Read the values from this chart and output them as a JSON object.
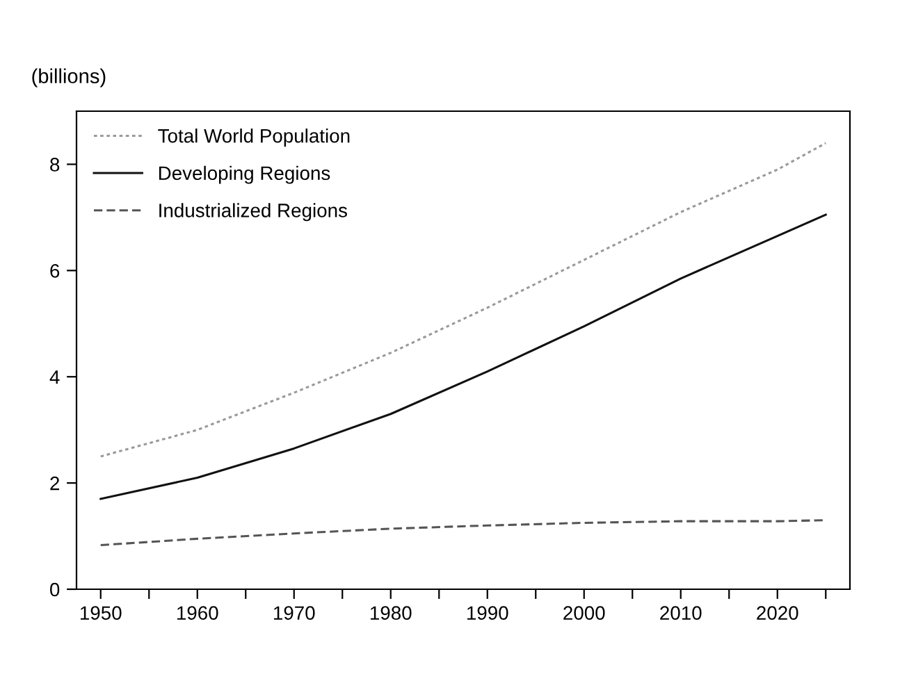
{
  "chart_data": {
    "type": "line",
    "ylabel": "(billions)",
    "x": [
      1950,
      1960,
      1970,
      1980,
      1990,
      2000,
      2010,
      2020,
      2025
    ],
    "series": [
      {
        "name": "Total World Population",
        "color": "#999999",
        "line_style": "dotted",
        "values": [
          2.5,
          3.0,
          3.7,
          4.45,
          5.3,
          6.2,
          7.1,
          7.9,
          8.4
        ]
      },
      {
        "name": "Developing Regions",
        "color": "#111111",
        "line_style": "solid",
        "values": [
          1.7,
          2.1,
          2.65,
          3.3,
          4.1,
          4.95,
          5.85,
          6.65,
          7.05
        ]
      },
      {
        "name": "Industrialized Regions",
        "color": "#555555",
        "line_style": "dashed",
        "values": [
          0.83,
          0.95,
          1.05,
          1.14,
          1.2,
          1.25,
          1.28,
          1.28,
          1.3
        ]
      }
    ],
    "xlim": [
      1947.5,
      2027.5
    ],
    "ylim": [
      0,
      9
    ],
    "xticks": [
      1950,
      {
        "value": 1955,
        "label": null
      },
      1960,
      {
        "value": 1965,
        "label": null
      },
      1970,
      {
        "value": 1975,
        "label": null
      },
      1980,
      {
        "value": 1985,
        "label": null
      },
      1990,
      {
        "value": 1995,
        "label": null
      },
      2000,
      {
        "value": 2005,
        "label": null
      },
      2010,
      {
        "value": 2015,
        "label": null
      },
      2020,
      {
        "value": 2025,
        "label": null
      }
    ],
    "yticks": [
      0,
      2,
      4,
      6,
      8
    ],
    "grid": false,
    "legend": "top left",
    "marker": "none"
  }
}
